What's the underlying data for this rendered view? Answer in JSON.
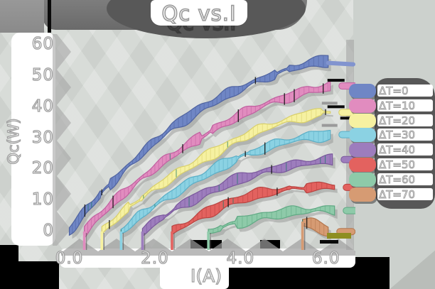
{
  "title": "Qc vs.I",
  "axes": {
    "xlabel": "I(A)",
    "ylabel": "Qc(W)",
    "x_ticks": [
      "0.0",
      "2.0",
      "4.0",
      "6.0"
    ],
    "x_tick_values": [
      0,
      2,
      4,
      6
    ],
    "y_ticks": [
      "60",
      "50",
      "40",
      "30",
      "20",
      "10",
      "0"
    ],
    "y_tick_values": [
      60,
      50,
      40,
      30,
      20,
      10,
      0
    ]
  },
  "legend": {
    "items": [
      {
        "label": "ΔT=0",
        "color": "#6f86c5"
      },
      {
        "label": "ΔT=10",
        "color": "#e18cbf"
      },
      {
        "label": "ΔT=20",
        "color": "#f6f1a1"
      },
      {
        "label": "ΔT=30",
        "color": "#8bd2e3"
      },
      {
        "label": "ΔT=40",
        "color": "#9d7dbd"
      },
      {
        "label": "ΔT=50",
        "color": "#e3625f"
      },
      {
        "label": "ΔT=60",
        "color": "#8ecaa9"
      },
      {
        "label": "ΔT=70",
        "color": "#d69b73"
      }
    ]
  },
  "chart_data": {
    "type": "line",
    "title": "Qc vs.I",
    "xlabel": "I(A)",
    "ylabel": "Qc(W)",
    "xlim": [
      0,
      6.6
    ],
    "ylim": [
      -5,
      62
    ],
    "grid": false,
    "legend_position": "right",
    "style": "sketch-bands-with-tick-hatching",
    "series": [
      {
        "name": "ΔT=0",
        "color": "#6f86c5",
        "dark": "#4f63a0",
        "points": [
          [
            0,
            0
          ],
          [
            0.4,
            7
          ],
          [
            0.8,
            13
          ],
          [
            1.2,
            18.5
          ],
          [
            1.6,
            24
          ],
          [
            2.0,
            29
          ],
          [
            2.4,
            33.5
          ],
          [
            2.8,
            37
          ],
          [
            3.2,
            40.5
          ],
          [
            3.6,
            43.5
          ],
          [
            4.0,
            46
          ],
          [
            4.4,
            48.5
          ],
          [
            4.8,
            50.5
          ],
          [
            5.2,
            52.5
          ],
          [
            5.6,
            54
          ],
          [
            6.05,
            55
          ]
        ]
      },
      {
        "name": "ΔT=10",
        "color": "#e18cbf",
        "dark": "#c060a0",
        "points": [
          [
            0.35,
            0
          ],
          [
            0.8,
            6.5
          ],
          [
            1.2,
            11.5
          ],
          [
            1.6,
            16
          ],
          [
            2.0,
            20.5
          ],
          [
            2.4,
            24.5
          ],
          [
            2.8,
            28
          ],
          [
            3.2,
            31.5
          ],
          [
            3.6,
            34.5
          ],
          [
            4.0,
            37.5
          ],
          [
            4.4,
            40
          ],
          [
            4.8,
            42
          ],
          [
            5.2,
            43.5
          ],
          [
            5.6,
            45.5
          ],
          [
            6.1,
            46.5
          ]
        ]
      },
      {
        "name": "ΔT=20",
        "color": "#f6f1a1",
        "dark": "#d8cf6a",
        "points": [
          [
            0.76,
            0
          ],
          [
            1.2,
            5.5
          ],
          [
            1.6,
            10
          ],
          [
            2.0,
            14
          ],
          [
            2.4,
            17.5
          ],
          [
            2.8,
            21
          ],
          [
            3.2,
            24
          ],
          [
            3.6,
            27
          ],
          [
            4.0,
            30
          ],
          [
            4.4,
            32.5
          ],
          [
            4.8,
            34.5
          ],
          [
            5.2,
            36
          ],
          [
            5.6,
            37.5
          ],
          [
            6.1,
            38.5
          ]
        ]
      },
      {
        "name": "ΔT=30",
        "color": "#8bd2e3",
        "dark": "#5aaec6",
        "points": [
          [
            1.21,
            0
          ],
          [
            1.6,
            4.5
          ],
          [
            2.0,
            8.5
          ],
          [
            2.4,
            12
          ],
          [
            2.8,
            15.5
          ],
          [
            3.2,
            18.5
          ],
          [
            3.6,
            21.5
          ],
          [
            4.0,
            24
          ],
          [
            4.4,
            26
          ],
          [
            4.8,
            28
          ],
          [
            5.2,
            29.5
          ],
          [
            5.6,
            30.5
          ],
          [
            6.1,
            31
          ]
        ]
      },
      {
        "name": "ΔT=40",
        "color": "#9d7dbd",
        "dark": "#7a589c",
        "points": [
          [
            1.71,
            0
          ],
          [
            2.1,
            4
          ],
          [
            2.5,
            7.5
          ],
          [
            2.9,
            10.5
          ],
          [
            3.3,
            13
          ],
          [
            3.7,
            15.5
          ],
          [
            4.1,
            17.5
          ],
          [
            4.5,
            19
          ],
          [
            4.9,
            20.5
          ],
          [
            5.3,
            21.5
          ],
          [
            5.7,
            22.5
          ],
          [
            6.15,
            23
          ]
        ]
      },
      {
        "name": "ΔT=50",
        "color": "#e3625f",
        "dark": "#b84340",
        "points": [
          [
            2.4,
            0
          ],
          [
            2.8,
            3
          ],
          [
            3.2,
            6
          ],
          [
            3.6,
            8.5
          ],
          [
            4.0,
            10.5
          ],
          [
            4.4,
            12
          ],
          [
            4.8,
            13
          ],
          [
            5.2,
            13.8
          ],
          [
            5.6,
            14.3
          ],
          [
            6.2,
            14.5
          ]
        ]
      },
      {
        "name": "ΔT=60",
        "color": "#8ecaa9",
        "dark": "#5fa983",
        "points": [
          [
            3.25,
            0
          ],
          [
            3.7,
            2
          ],
          [
            4.1,
            3.5
          ],
          [
            4.5,
            4.8
          ],
          [
            4.9,
            5.8
          ],
          [
            5.3,
            6.5
          ],
          [
            5.7,
            7
          ],
          [
            6.2,
            7
          ]
        ]
      },
      {
        "name": "ΔT=70",
        "color": "#d69b73",
        "dark": "#b2764e",
        "points": [
          [
            5.45,
            3.2
          ],
          [
            5.65,
            2.4
          ],
          [
            5.85,
            1.2
          ],
          [
            6.05,
            0.3
          ]
        ]
      }
    ]
  },
  "decor": {
    "olive_bar_color": "#8e8e21",
    "shadow_gray": "#8f8f8f"
  }
}
